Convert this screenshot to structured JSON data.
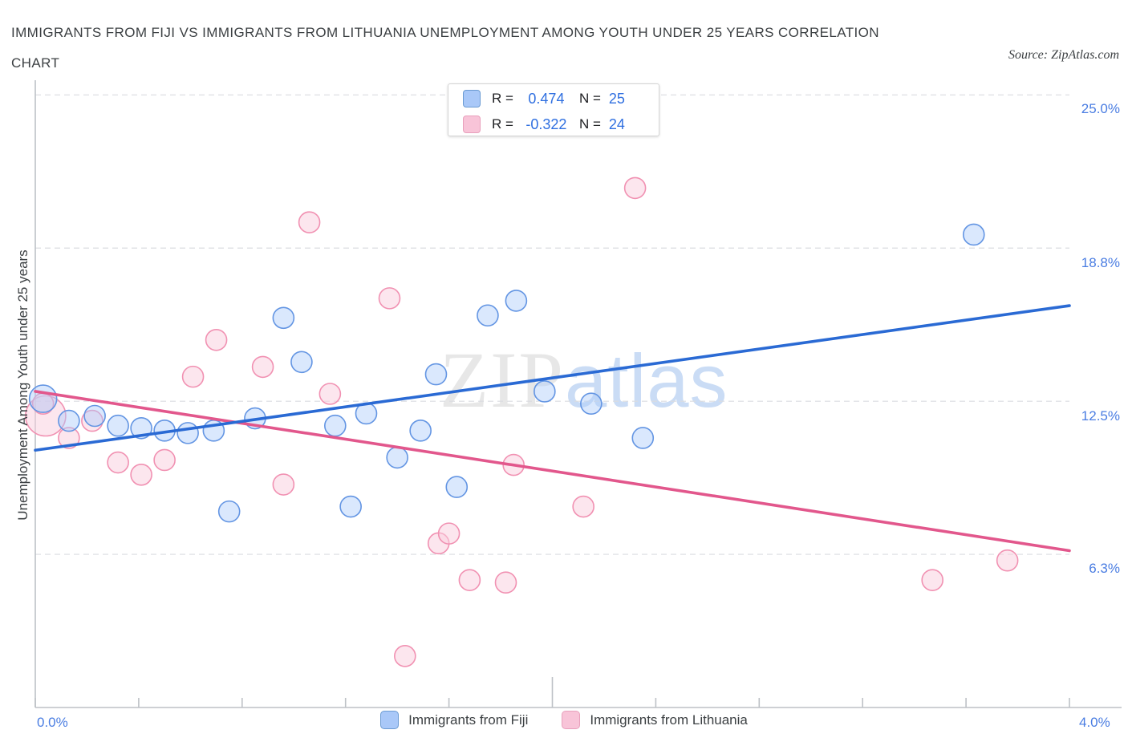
{
  "header": {
    "title_line1": "IMMIGRANTS FROM FIJI VS IMMIGRANTS FROM LITHUANIA UNEMPLOYMENT AMONG YOUTH UNDER 25 YEARS CORRELATION",
    "title_line2": "CHART",
    "source": "Source: ZipAtlas.com"
  },
  "legend_box": {
    "rows": [
      {
        "r_label": "R =",
        "r_value": "0.474",
        "n_label": "N =",
        "n_value": "25"
      },
      {
        "r_label": "R =",
        "r_value": "-0.322",
        "n_label": "N =",
        "n_value": "24"
      }
    ]
  },
  "watermark": {
    "zip": "ZIP",
    "atlas": "atlas"
  },
  "axes": {
    "y_label": "Unemployment Among Youth under 25 years",
    "x_min_label": "0.0%",
    "x_max_label": "4.0%"
  },
  "bottom_legend": [
    {
      "label": "Immigrants from Fiji"
    },
    {
      "label": "Immigrants from Lithuania"
    }
  ],
  "colors": {
    "blue_fill": "rgba(174,203,250,0.45)",
    "blue_stroke": "#6395e3",
    "pink_fill": "rgba(250,205,222,0.5)",
    "pink_stroke": "#f191b2",
    "blue_line": "#2a6ad4",
    "pink_line": "#e2578c",
    "grid": "#dadce0",
    "axis": "#bdc1c6",
    "legend_blue_fill": "#a9c8f8",
    "legend_blue_stroke": "#6b9bd2",
    "legend_pink_fill": "#f8c4d8",
    "legend_pink_stroke": "#e8a0bc"
  },
  "chart_data": {
    "type": "scatter",
    "title": "Immigrants from Fiji vs Immigrants from Lithuania Unemployment Among Youth under 25 years Correlation Chart",
    "xlabel": "",
    "ylabel": "Unemployment Among Youth under 25 years",
    "xlim": [
      0,
      4.0
    ],
    "ylim": [
      0,
      25.6
    ],
    "grid": "dashed-horizontal",
    "legend_position": "bottom-center",
    "point_radius": 13,
    "x_ticks": [
      {
        "v": 0.0
      },
      {
        "v": 0.4
      },
      {
        "v": 0.8
      },
      {
        "v": 1.2
      },
      {
        "v": 1.6
      },
      {
        "v": 2.0,
        "major": true
      },
      {
        "v": 2.4
      },
      {
        "v": 2.8
      },
      {
        "v": 3.2
      },
      {
        "v": 3.6
      },
      {
        "v": 4.0
      }
    ],
    "y_gridlines": [
      {
        "value": 25.0,
        "label": "25.0%"
      },
      {
        "value": 18.75,
        "label": "18.8%"
      },
      {
        "value": 12.5,
        "label": "12.5%"
      },
      {
        "value": 6.25,
        "label": "6.3%"
      }
    ],
    "series": [
      {
        "name": "Immigrants from Lithuania",
        "R": -0.322,
        "N": 24,
        "points": [
          {
            "x": 0.04,
            "y": 11.9,
            "r": 25
          },
          {
            "x": 0.03,
            "y": 12.4
          },
          {
            "x": 0.13,
            "y": 11.0
          },
          {
            "x": 0.22,
            "y": 11.7
          },
          {
            "x": 0.32,
            "y": 10.0
          },
          {
            "x": 0.41,
            "y": 9.5
          },
          {
            "x": 0.5,
            "y": 10.1
          },
          {
            "x": 0.61,
            "y": 13.5
          },
          {
            "x": 0.7,
            "y": 15.0
          },
          {
            "x": 0.88,
            "y": 13.9
          },
          {
            "x": 0.96,
            "y": 9.1
          },
          {
            "x": 1.06,
            "y": 19.8
          },
          {
            "x": 1.14,
            "y": 12.8
          },
          {
            "x": 1.37,
            "y": 16.7
          },
          {
            "x": 1.43,
            "y": 2.1
          },
          {
            "x": 1.56,
            "y": 6.7
          },
          {
            "x": 1.6,
            "y": 7.1
          },
          {
            "x": 1.68,
            "y": 5.2
          },
          {
            "x": 1.82,
            "y": 5.1
          },
          {
            "x": 1.85,
            "y": 9.9
          },
          {
            "x": 2.12,
            "y": 8.2
          },
          {
            "x": 2.32,
            "y": 21.2
          },
          {
            "x": 3.47,
            "y": 5.2
          },
          {
            "x": 3.76,
            "y": 6.0
          }
        ]
      },
      {
        "name": "Immigrants from Fiji",
        "R": 0.474,
        "N": 25,
        "points": [
          {
            "x": 0.03,
            "y": 12.6,
            "r": 17
          },
          {
            "x": 0.13,
            "y": 11.7
          },
          {
            "x": 0.23,
            "y": 11.9
          },
          {
            "x": 0.32,
            "y": 11.5
          },
          {
            "x": 0.41,
            "y": 11.4
          },
          {
            "x": 0.5,
            "y": 11.3
          },
          {
            "x": 0.59,
            "y": 11.2
          },
          {
            "x": 0.69,
            "y": 11.3
          },
          {
            "x": 0.75,
            "y": 8.0
          },
          {
            "x": 0.85,
            "y": 11.8
          },
          {
            "x": 0.96,
            "y": 15.9
          },
          {
            "x": 1.03,
            "y": 14.1
          },
          {
            "x": 1.16,
            "y": 11.5
          },
          {
            "x": 1.22,
            "y": 8.2
          },
          {
            "x": 1.28,
            "y": 12.0
          },
          {
            "x": 1.4,
            "y": 10.2
          },
          {
            "x": 1.49,
            "y": 11.3
          },
          {
            "x": 1.55,
            "y": 13.6
          },
          {
            "x": 1.63,
            "y": 9.0
          },
          {
            "x": 1.75,
            "y": 16.0
          },
          {
            "x": 1.86,
            "y": 16.6
          },
          {
            "x": 1.97,
            "y": 12.9
          },
          {
            "x": 2.15,
            "y": 12.4
          },
          {
            "x": 2.35,
            "y": 11.0
          },
          {
            "x": 3.63,
            "y": 19.3
          }
        ]
      }
    ],
    "trend_lines": [
      {
        "series": "Immigrants from Lithuania",
        "x1": 0,
        "y1": 12.9,
        "x2": 4.0,
        "y2": 6.4
      },
      {
        "series": "Immigrants from Fiji",
        "x1": 0,
        "y1": 10.5,
        "x2": 4.0,
        "y2": 16.4
      }
    ]
  }
}
